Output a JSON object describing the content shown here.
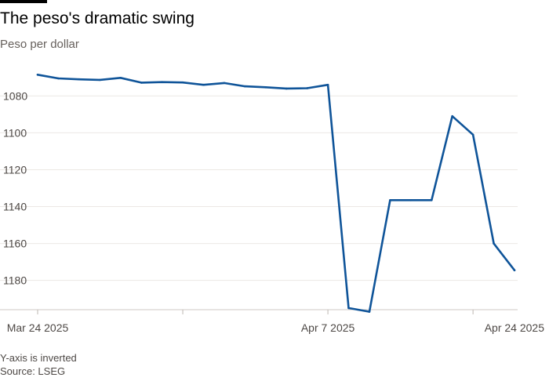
{
  "title": "The peso's dramatic swing",
  "subtitle": "Peso per dollar",
  "note": "Y-axis is inverted",
  "source": "Source: LSEG",
  "chart_data": {
    "type": "line",
    "title": "The peso's dramatic swing",
    "ylabel": "Peso per dollar",
    "y_inverted": true,
    "ylim": [
      1062,
      1198
    ],
    "yticks": [
      1080,
      1100,
      1120,
      1140,
      1160,
      1180
    ],
    "grid": true,
    "line_color": "#0f5499",
    "x_tick_labels": [
      {
        "date": "2025-03-24",
        "label": "Mar 24 2025"
      },
      {
        "date": "2025-04-07",
        "label": "Apr 7 2025"
      },
      {
        "date": "2025-04-24",
        "label": "Apr 24 2025"
      }
    ],
    "x_minor_ticks": [
      "2025-03-31",
      "2025-04-14",
      "2025-04-21"
    ],
    "series": [
      {
        "points": [
          {
            "x": "2025-03-24",
            "y": 1068.5
          },
          {
            "x": "2025-03-25",
            "y": 1070.5
          },
          {
            "x": "2025-03-26",
            "y": 1071.0
          },
          {
            "x": "2025-03-27",
            "y": 1071.3
          },
          {
            "x": "2025-03-28",
            "y": 1070.2
          },
          {
            "x": "2025-03-29",
            "y": 1072.8
          },
          {
            "x": "2025-03-30",
            "y": 1072.5
          },
          {
            "x": "2025-03-31",
            "y": 1072.7
          },
          {
            "x": "2025-04-01",
            "y": 1074.0
          },
          {
            "x": "2025-04-02",
            "y": 1073.0
          },
          {
            "x": "2025-04-03",
            "y": 1074.8
          },
          {
            "x": "2025-04-04",
            "y": 1075.3
          },
          {
            "x": "2025-04-05",
            "y": 1076.0
          },
          {
            "x": "2025-04-06",
            "y": 1075.8
          },
          {
            "x": "2025-04-07",
            "y": 1074.0
          },
          {
            "x": "2025-04-08",
            "y": 1195.0
          },
          {
            "x": "2025-04-09",
            "y": 1197.0
          },
          {
            "x": "2025-04-10",
            "y": 1136.5
          },
          {
            "x": "2025-04-11",
            "y": 1136.5
          },
          {
            "x": "2025-04-12",
            "y": 1136.5
          },
          {
            "x": "2025-04-13",
            "y": 1091.0
          },
          {
            "x": "2025-04-14",
            "y": 1101.0
          },
          {
            "x": "2025-04-15",
            "y": 1160.0
          },
          {
            "x": "2025-04-16",
            "y": 1174.5
          }
        ]
      }
    ]
  }
}
